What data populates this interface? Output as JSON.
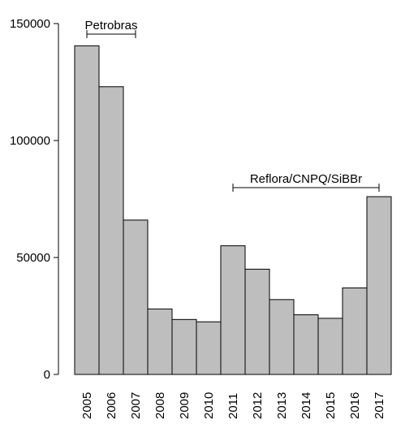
{
  "chart_data": {
    "type": "bar",
    "categories": [
      "2005",
      "2006",
      "2007",
      "2008",
      "2009",
      "2010",
      "2011",
      "2012",
      "2013",
      "2014",
      "2015",
      "2016",
      "2017"
    ],
    "values": [
      140500,
      123000,
      66000,
      28000,
      23500,
      22500,
      55000,
      45000,
      32000,
      25500,
      24000,
      37000,
      76000
    ],
    "ylim": [
      0,
      150000
    ],
    "yticks": [
      0,
      50000,
      100000,
      150000
    ],
    "ytick_labels": [
      "0",
      "50000",
      "100000",
      "150000"
    ],
    "bar_color": "#bebebe",
    "grid": false,
    "annotations": [
      {
        "text": "Petrobras",
        "from": "2005",
        "to": "2007"
      },
      {
        "text": "Reflora/CNPQ/SiBBr",
        "from": "2011",
        "to": "2017"
      }
    ]
  }
}
